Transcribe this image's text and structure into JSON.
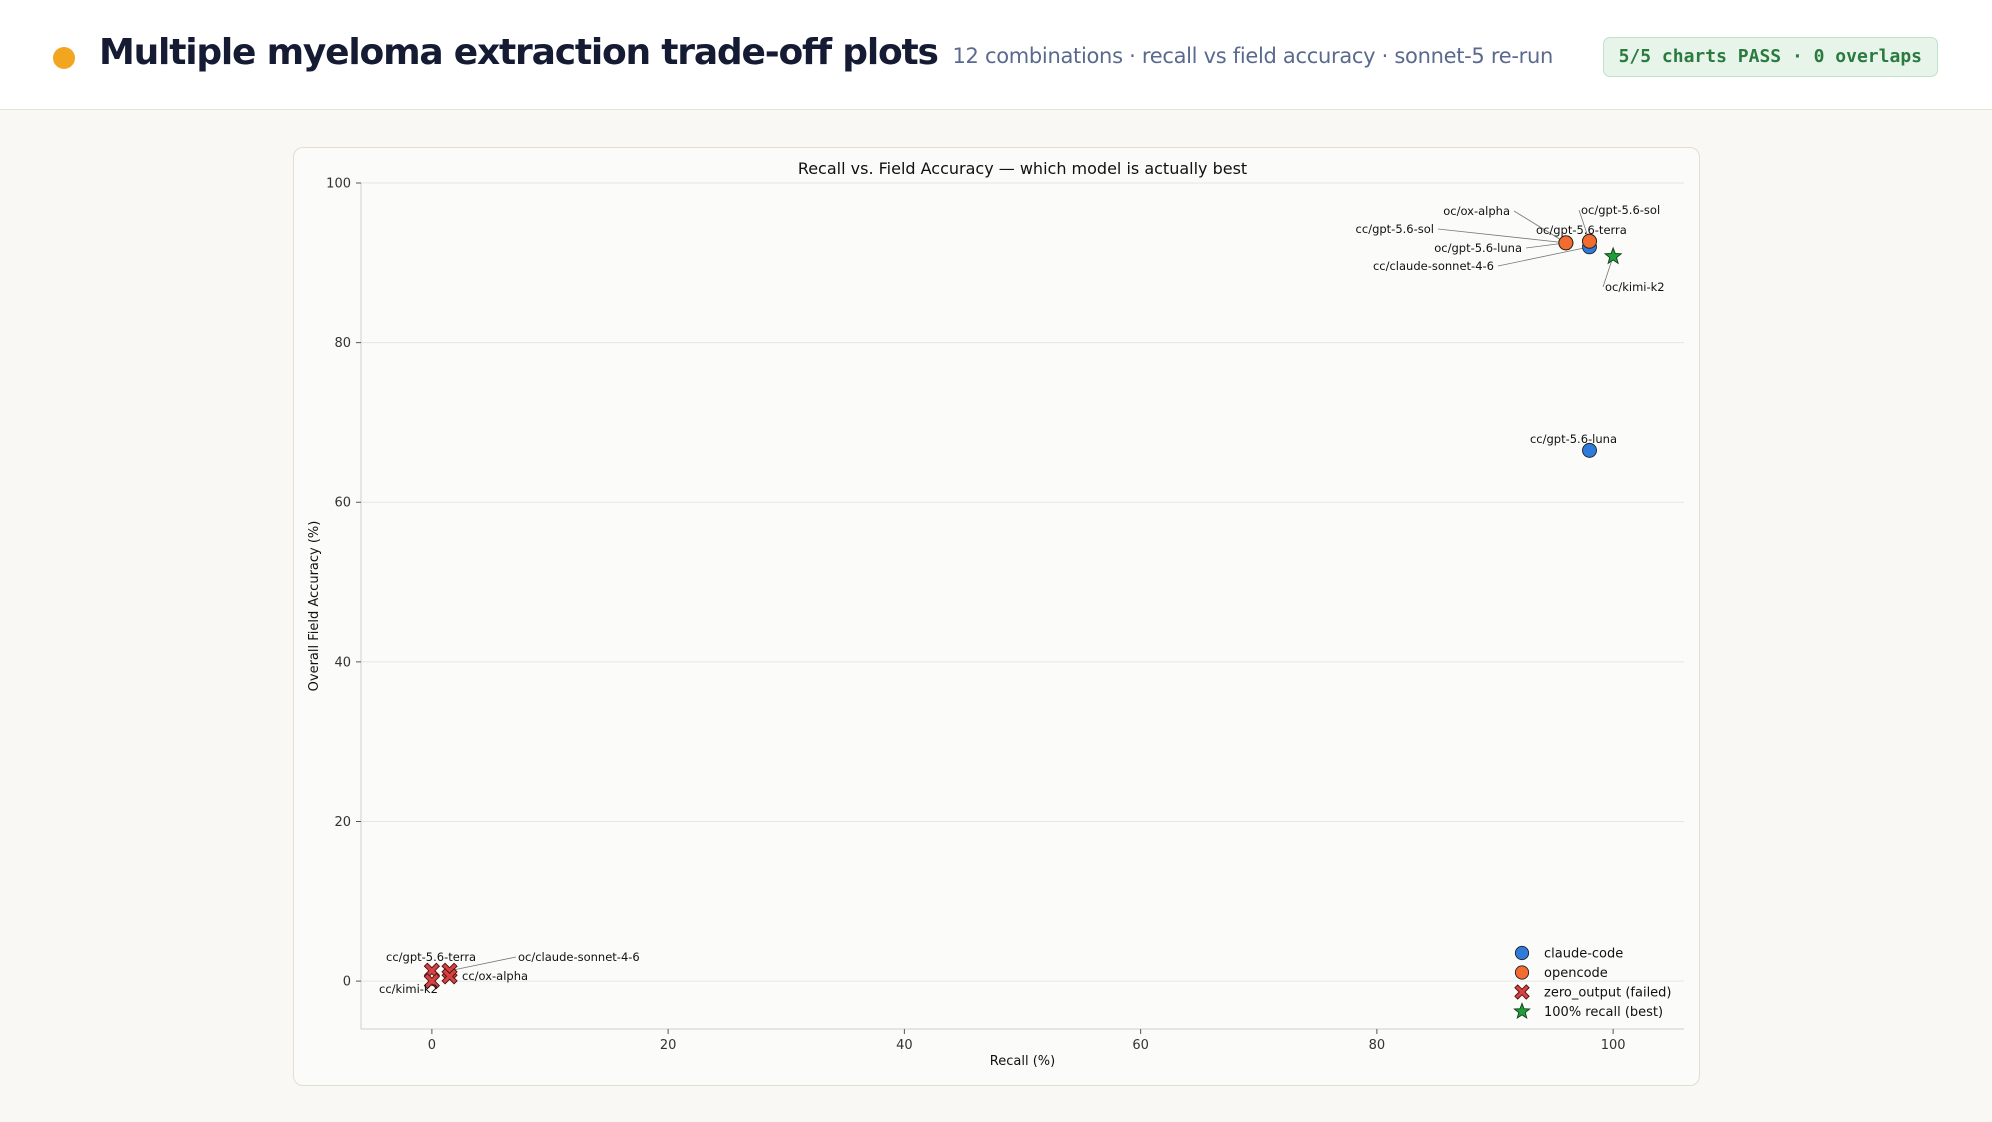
{
  "header": {
    "title": "Multiple myeloma extraction trade-off plots",
    "subtitle": "12 combinations · recall vs field accuracy · sonnet-5 re-run",
    "badge": "5/5 charts PASS · 0 overlaps",
    "dot_color": "#f2a51f"
  },
  "chart_data": {
    "type": "scatter",
    "title": "Recall vs. Field Accuracy — which model is actually best",
    "xlabel": "Recall (%)",
    "ylabel": "Overall Field Accuracy (%)",
    "xlim": [
      -6,
      106
    ],
    "ylim": [
      -6,
      100
    ],
    "xticks": [
      "0",
      "20",
      "40",
      "60",
      "80",
      "100"
    ],
    "yticks": [
      "0",
      "20",
      "40",
      "60",
      "80",
      "100"
    ],
    "grid": "horizontal",
    "legend_position": "bottom-right",
    "legend": [
      {
        "label": "claude-code",
        "marker": "circle",
        "color": "#2f7bdc"
      },
      {
        "label": "opencode",
        "marker": "circle",
        "color": "#f26b2f"
      },
      {
        "label": "zero_output (failed)",
        "marker": "x",
        "color": "#d64141"
      },
      {
        "label": "100% recall (best)",
        "marker": "star",
        "color": "#1e9e36"
      }
    ],
    "points": [
      {
        "label": "cc/gpt-5.6-luna",
        "x": 98,
        "y": 66.5,
        "marker": "circle",
        "color": "#2f7bdc"
      },
      {
        "label": "cc/claude-sonnet-4-6",
        "x": 98,
        "y": 92,
        "marker": "circle",
        "color": "#2f7bdc"
      },
      {
        "label": "cc/gpt-5.6-sol",
        "x": 96,
        "y": 92.5,
        "marker": "circle",
        "color": "#f26b2f"
      },
      {
        "label": "oc/gpt-5.6-luna",
        "x": 96,
        "y": 92.5,
        "marker": "circle",
        "color": "#f26b2f"
      },
      {
        "label": "oc/ox-alpha",
        "x": 96,
        "y": 92.5,
        "marker": "circle",
        "color": "#f26b2f"
      },
      {
        "label": "oc/gpt-5.6-sol",
        "x": 98,
        "y": 92.7,
        "marker": "circle",
        "color": "#f26b2f"
      },
      {
        "label": "oc/gpt-5.6-terra",
        "x": 98,
        "y": 92.7,
        "marker": "circle",
        "color": "#f26b2f"
      },
      {
        "label": "oc/kimi-k2",
        "x": 100,
        "y": 90.8,
        "marker": "star",
        "color": "#1e9e36"
      },
      {
        "label": "cc/gpt-5.6-terra",
        "x": 0,
        "y": 1.3,
        "marker": "x",
        "color": "#d64141"
      },
      {
        "label": "oc/claude-sonnet-4-6",
        "x": 1.5,
        "y": 1.3,
        "marker": "x",
        "color": "#d64141"
      },
      {
        "label": "cc/ox-alpha",
        "x": 1.5,
        "y": 0.6,
        "marker": "x",
        "color": "#d64141"
      },
      {
        "label": "cc/kimi-k2",
        "x": 0,
        "y": 0,
        "marker": "x",
        "color": "#d64141"
      }
    ]
  }
}
